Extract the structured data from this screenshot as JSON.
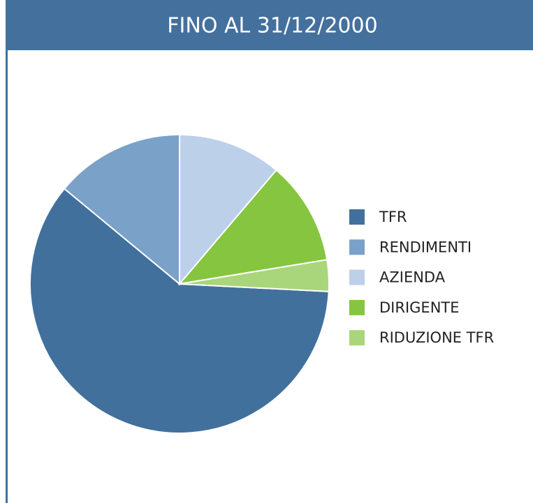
{
  "chart_data": {
    "type": "pie",
    "title": "FINO AL 31/12/2000",
    "categories": [
      "TFR",
      "RENDIMENTI",
      "AZIENDA",
      "DIRIGENTE",
      "RIDUZIONE TFR"
    ],
    "values": [
      60.2,
      14,
      11.2,
      11.2,
      3.4
    ],
    "colors": [
      "#41709c",
      "#7aa1c8",
      "#bdd0ea",
      "#86c540",
      "#a9d67b"
    ],
    "legend": "right"
  }
}
